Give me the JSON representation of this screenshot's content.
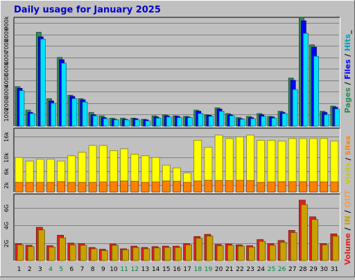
{
  "title": "Daily usage for January 2025",
  "colors": {
    "background": "#c0c0c0",
    "title": "#0000c8",
    "pages": "#2e8b57",
    "files": "#0000ff",
    "hits": "#00e0ff",
    "visits": "#ffff00",
    "sites": "#ff8000",
    "volume": "#e02020",
    "volume_in": "#e8a060",
    "volume_out": "#c8a000",
    "weekday": "#000000",
    "weekend": "#008040"
  },
  "chart_data": [
    {
      "type": "bar",
      "name": "pages-files-hits",
      "categories": [
        "1",
        "2",
        "3",
        "4",
        "5",
        "6",
        "7",
        "8",
        "9",
        "10",
        "11",
        "12",
        "13",
        "14",
        "15",
        "16",
        "17",
        "18",
        "19",
        "20",
        "21",
        "22",
        "23",
        "24",
        "25",
        "26",
        "27",
        "28",
        "29",
        "30",
        "31"
      ],
      "weekend_days": [
        "4",
        "5",
        "11",
        "12",
        "18",
        "19",
        "25",
        "26"
      ],
      "ylim": [
        0,
        950000
      ],
      "ytick_values": [
        100000,
        200000,
        300000,
        400000,
        500000,
        600000,
        700000,
        800000,
        900000
      ],
      "ytick_labels": [
        "100k",
        "200k",
        "300k",
        "400k",
        "500k",
        "600k",
        "700k",
        "800k",
        "900k"
      ],
      "right_label_parts": [
        {
          "text": "Pages",
          "color": "#2e8b57"
        },
        {
          "text": " / ",
          "color": "#000000"
        },
        {
          "text": "Files",
          "color": "#0000ff"
        },
        {
          "text": " / ",
          "color": "#000000"
        },
        {
          "text": "Hits",
          "color": "#00a0c0"
        },
        {
          "text": "_",
          "color": "#000000"
        }
      ],
      "series": [
        {
          "key": "pages",
          "values": [
            345000,
            140000,
            820000,
            240000,
            600000,
            270000,
            240000,
            120000,
            90000,
            70000,
            70000,
            70000,
            60000,
            90000,
            100000,
            90000,
            85000,
            140000,
            100000,
            160000,
            110000,
            75000,
            85000,
            110000,
            85000,
            130000,
            420000,
            950000,
            710000,
            130000,
            175000
          ]
        },
        {
          "key": "files",
          "values": [
            330000,
            120000,
            780000,
            220000,
            580000,
            260000,
            230000,
            100000,
            75000,
            60000,
            60000,
            65000,
            55000,
            80000,
            90000,
            85000,
            80000,
            130000,
            95000,
            150000,
            100000,
            65000,
            75000,
            100000,
            80000,
            120000,
            400000,
            920000,
            690000,
            120000,
            165000
          ]
        },
        {
          "key": "hits",
          "values": [
            310000,
            110000,
            760000,
            200000,
            550000,
            240000,
            210000,
            90000,
            65000,
            55000,
            55000,
            55000,
            45000,
            70000,
            80000,
            75000,
            75000,
            110000,
            85000,
            130000,
            90000,
            60000,
            65000,
            85000,
            70000,
            110000,
            320000,
            810000,
            610000,
            100000,
            150000
          ]
        }
      ]
    },
    {
      "type": "bar",
      "name": "visits-sites",
      "categories": [
        "1",
        "2",
        "3",
        "4",
        "5",
        "6",
        "7",
        "8",
        "9",
        "10",
        "11",
        "12",
        "13",
        "14",
        "15",
        "16",
        "17",
        "18",
        "19",
        "20",
        "21",
        "22",
        "23",
        "24",
        "25",
        "26",
        "27",
        "28",
        "29",
        "30",
        "31"
      ],
      "ylim": [
        0,
        18500
      ],
      "ytick_values": [
        2000,
        6000,
        10000,
        16000
      ],
      "ytick_labels": [
        "2k",
        "6k",
        "10k",
        "16k"
      ],
      "right_label_parts": [
        {
          "text": "Visits",
          "color": "#c8c800"
        },
        {
          "text": " / ",
          "color": "#000000"
        },
        {
          "text": "Sites",
          "color": "#ff8000"
        }
      ],
      "series": [
        {
          "key": "visits",
          "values": [
            10000,
            9000,
            9500,
            9500,
            9000,
            10500,
            11500,
            13500,
            13500,
            12000,
            12500,
            11000,
            10500,
            10000,
            7800,
            7000,
            5500,
            15000,
            13000,
            16500,
            15500,
            16000,
            16500,
            15000,
            15000,
            14800,
            15500,
            15500,
            15500,
            15500,
            14800
          ]
        },
        {
          "key": "sites",
          "values": [
            2800,
            2800,
            2800,
            2800,
            3000,
            2800,
            2800,
            2800,
            2900,
            3000,
            3200,
            3100,
            2800,
            2900,
            3200,
            3100,
            2800,
            3200,
            3400,
            3300,
            3300,
            3400,
            3300,
            2800,
            2900,
            3000,
            3000,
            3000,
            3000,
            2900,
            2900
          ]
        }
      ]
    },
    {
      "type": "bar",
      "name": "volume",
      "categories": [
        "1",
        "2",
        "3",
        "4",
        "5",
        "6",
        "7",
        "8",
        "9",
        "10",
        "11",
        "12",
        "13",
        "14",
        "15",
        "16",
        "17",
        "18",
        "19",
        "20",
        "21",
        "22",
        "23",
        "24",
        "25",
        "26",
        "27",
        "28",
        "29",
        "30",
        "31"
      ],
      "weekend_days": [
        "4",
        "5",
        "11",
        "12",
        "18",
        "19",
        "25",
        "26"
      ],
      "ylim": [
        0,
        7600000
      ],
      "ytick_values": [
        2000000,
        4000000,
        6000000
      ],
      "ytick_labels": [
        "2G",
        "4G",
        "6G"
      ],
      "right_label_parts": [
        {
          "text": "Volume",
          "color": "#e02020"
        },
        {
          "text": " / ",
          "color": "#000000"
        },
        {
          "text": "IN",
          "color": "#c8a000"
        },
        {
          "text": " / ",
          "color": "#000000"
        },
        {
          "text": "OUT",
          "color": "#e8a060"
        }
      ],
      "series": [
        {
          "key": "volume",
          "values": [
            1950000,
            1750000,
            3800000,
            1700000,
            2900000,
            2000000,
            1950000,
            1500000,
            1300000,
            1900000,
            1350000,
            1650000,
            1500000,
            1600000,
            1650000,
            1650000,
            1950000,
            2750000,
            3000000,
            1850000,
            1900000,
            1800000,
            1700000,
            2400000,
            1950000,
            2300000,
            3450000,
            6900000,
            5000000,
            1950000,
            3050000
          ]
        },
        {
          "key": "volume_out",
          "values": [
            1800000,
            1600000,
            3500000,
            1550000,
            2600000,
            1800000,
            1750000,
            1350000,
            1150000,
            1750000,
            1250000,
            1500000,
            1350000,
            1450000,
            1500000,
            1500000,
            1800000,
            2550000,
            2800000,
            1700000,
            1750000,
            1650000,
            1550000,
            2200000,
            1750000,
            2100000,
            3200000,
            6400000,
            4700000,
            1800000,
            2800000
          ]
        }
      ]
    }
  ]
}
